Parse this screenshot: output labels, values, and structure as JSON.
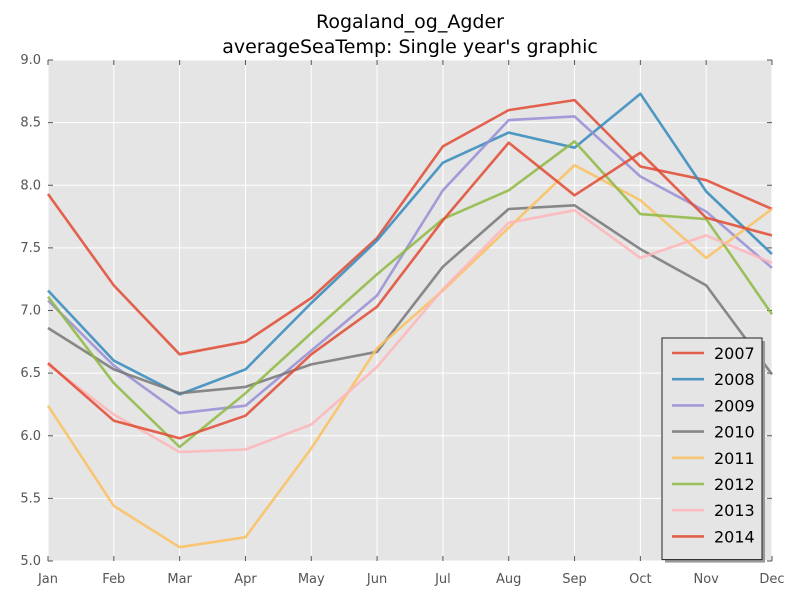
{
  "chart_data": {
    "type": "line",
    "title": "Rogaland_og_Agder",
    "subtitle": "averageSeaTemp: Single year's graphic",
    "xlabel": "",
    "ylabel": "",
    "categories": [
      "Jan",
      "Feb",
      "Mar",
      "Apr",
      "May",
      "Jun",
      "Jul",
      "Aug",
      "Sep",
      "Oct",
      "Nov",
      "Dec"
    ],
    "ylim": [
      5.0,
      9.0
    ],
    "yticks": [
      "5.0",
      "5.5",
      "6.0",
      "6.5",
      "7.0",
      "7.5",
      "8.0",
      "8.5",
      "9.0"
    ],
    "grid": true,
    "background": "#e5e5e5",
    "legend_position": "lower-right",
    "series": [
      {
        "name": "2007",
        "color": "#e24a33",
        "values": [
          7.93,
          7.2,
          6.65,
          6.75,
          7.1,
          7.58,
          8.31,
          8.6,
          8.68,
          8.15,
          8.04,
          7.81
        ]
      },
      {
        "name": "2008",
        "color": "#348abd",
        "values": [
          7.16,
          6.6,
          6.33,
          6.53,
          7.06,
          7.56,
          8.18,
          8.42,
          8.3,
          8.73,
          7.95,
          7.45
        ]
      },
      {
        "name": "2009",
        "color": "#988ed5",
        "values": [
          7.08,
          6.56,
          6.18,
          6.24,
          6.68,
          7.12,
          7.96,
          8.52,
          8.55,
          8.07,
          7.79,
          7.34
        ]
      },
      {
        "name": "2010",
        "color": "#777777",
        "values": [
          6.86,
          6.53,
          6.34,
          6.39,
          6.57,
          6.67,
          7.35,
          7.81,
          7.84,
          7.49,
          7.2,
          6.49
        ]
      },
      {
        "name": "2011",
        "color": "#fbc15e",
        "values": [
          6.24,
          5.44,
          5.11,
          5.19,
          5.9,
          6.7,
          7.16,
          7.66,
          8.16,
          7.88,
          7.42,
          7.81
        ]
      },
      {
        "name": "2012",
        "color": "#8eba42",
        "values": [
          7.11,
          6.42,
          5.91,
          6.34,
          6.82,
          7.29,
          7.73,
          7.96,
          8.35,
          7.77,
          7.73,
          6.97
        ]
      },
      {
        "name": "2013",
        "color": "#ffb5b8",
        "values": [
          6.57,
          6.17,
          5.87,
          5.89,
          6.09,
          6.55,
          7.17,
          7.7,
          7.8,
          7.42,
          7.6,
          7.38
        ]
      },
      {
        "name": "2014",
        "color": "#e24a33",
        "values": [
          6.58,
          6.12,
          5.98,
          6.16,
          6.65,
          7.03,
          7.72,
          8.34,
          7.92,
          8.26,
          7.74,
          7.6
        ]
      }
    ]
  }
}
